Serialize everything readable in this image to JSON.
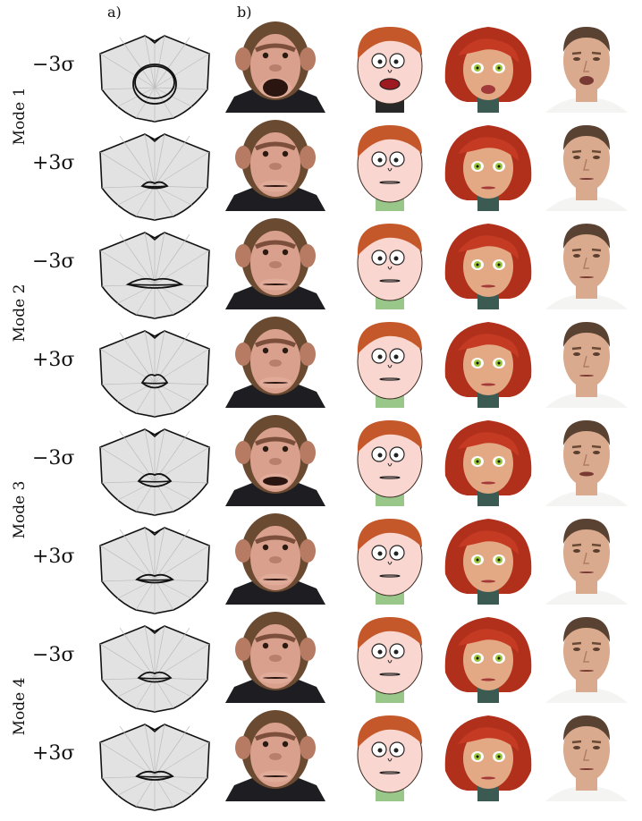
{
  "panel_labels": {
    "a": "a)",
    "b": "b)"
  },
  "modes": [
    {
      "label": "Mode 1",
      "rows": [
        {
          "sigma": "−3σ"
        },
        {
          "sigma": "+3σ"
        }
      ]
    },
    {
      "label": "Mode 2",
      "rows": [
        {
          "sigma": "−3σ"
        },
        {
          "sigma": "+3σ"
        }
      ]
    },
    {
      "label": "Mode 3",
      "rows": [
        {
          "sigma": "−3σ"
        },
        {
          "sigma": "+3σ"
        }
      ]
    },
    {
      "label": "Mode 4",
      "rows": [
        {
          "sigma": "−3σ"
        },
        {
          "sigma": "+3σ"
        }
      ]
    }
  ],
  "characters": [
    "chimpanzee-face",
    "cartoon-boy-face",
    "cartoon-girl-face",
    "realistic-man-face"
  ],
  "colors": {
    "mesh_fill": "#e2e2e2",
    "mesh_lines": "#bdbdbd",
    "outline": "#111111",
    "chimp_fur": "#6b4a32",
    "chimp_skin": "#d9a08d",
    "boy_skin": "#f9d6cf",
    "boy_hair": "#c4582a",
    "girl_hair": "#b0301c",
    "girl_skin": "#e3a884",
    "girl_eyes": "#9bc43a",
    "man_skin": "#d9aa8d",
    "man_hair": "#5a4232"
  }
}
